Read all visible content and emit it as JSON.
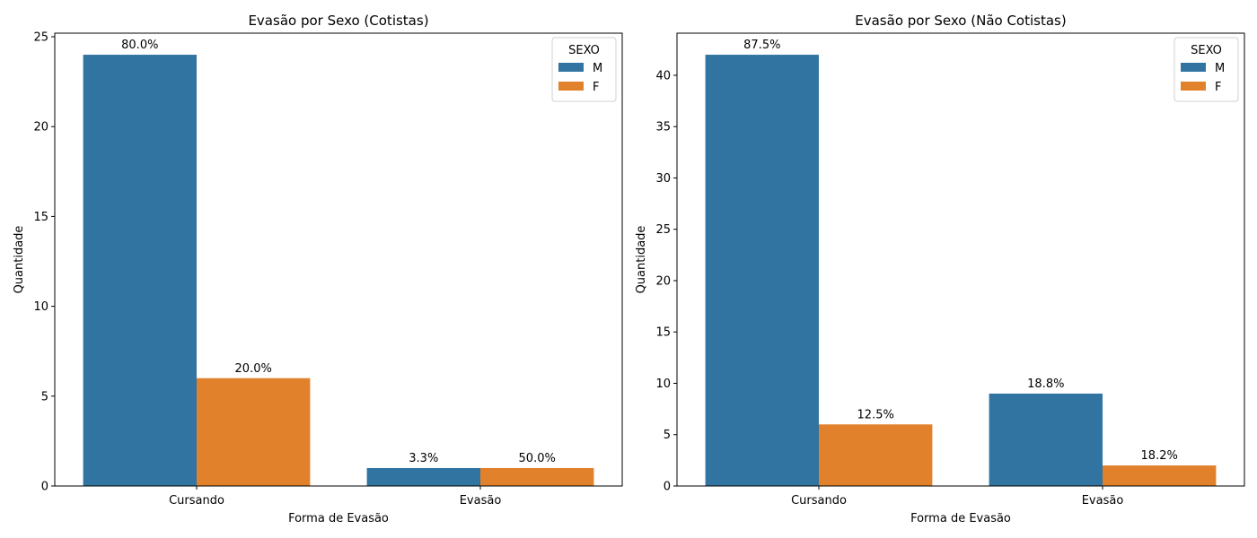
{
  "chart_data": [
    {
      "type": "bar",
      "title": "Evasão por Sexo (Cotistas)",
      "xlabel": "Forma de Evasão",
      "ylabel": "Quantidade",
      "categories": [
        "Cursando",
        "Evasão"
      ],
      "ylim": [
        0,
        25.2
      ],
      "yticks": [
        0,
        5,
        10,
        15,
        20,
        25
      ],
      "legend": {
        "title": "SEXO",
        "placement": "top-right"
      },
      "series": [
        {
          "name": "M",
          "color": "#3274a1",
          "values": [
            24,
            1
          ],
          "labels": [
            "80.0%",
            "3.3%"
          ]
        },
        {
          "name": "F",
          "color": "#e1812c",
          "values": [
            6,
            1
          ],
          "labels": [
            "20.0%",
            "50.0%"
          ]
        }
      ],
      "grid": false
    },
    {
      "type": "bar",
      "title": "Evasão por Sexo (Não Cotistas)",
      "xlabel": "Forma de Evasão",
      "ylabel": "Quantidade",
      "categories": [
        "Cursando",
        "Evasão"
      ],
      "ylim": [
        0,
        44.1
      ],
      "yticks": [
        0,
        5,
        10,
        15,
        20,
        25,
        30,
        35,
        40
      ],
      "legend": {
        "title": "SEXO",
        "placement": "top-right"
      },
      "series": [
        {
          "name": "M",
          "color": "#3274a1",
          "values": [
            42,
            9
          ],
          "labels": [
            "87.5%",
            "18.8%"
          ]
        },
        {
          "name": "F",
          "color": "#e1812c",
          "values": [
            6,
            2
          ],
          "labels": [
            "12.5%",
            "18.2%"
          ]
        }
      ],
      "grid": false
    }
  ]
}
